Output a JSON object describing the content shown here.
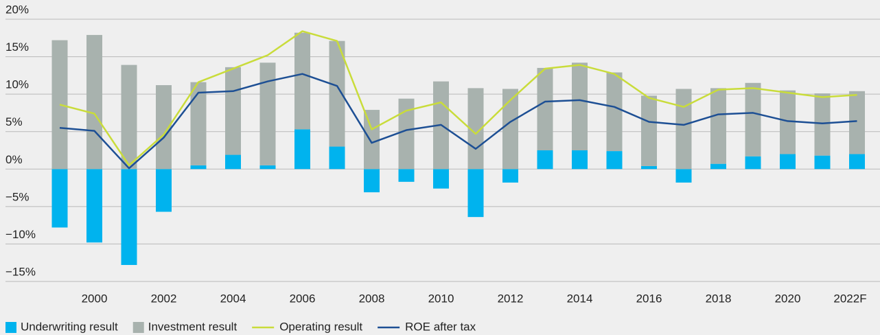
{
  "chart_data": {
    "type": "bar",
    "stacked": true,
    "grid": true,
    "legend": "bottom-left",
    "categories": [
      null,
      "2000",
      null,
      "2002",
      null,
      "2004",
      null,
      "2006",
      null,
      "2008",
      null,
      "2010",
      null,
      "2012",
      null,
      "2014",
      null,
      "2016",
      null,
      "2018",
      null,
      "2020",
      null,
      "2022F"
    ],
    "series": [
      {
        "name": "Underwriting result",
        "type": "bar",
        "color": "#00b3ee",
        "values": [
          -7.8,
          -9.8,
          -12.8,
          -5.7,
          0.5,
          1.9,
          0.5,
          5.3,
          3.0,
          -3.1,
          -1.7,
          -2.6,
          -6.4,
          -1.8,
          2.5,
          2.5,
          2.4,
          0.4,
          -1.8,
          0.7,
          1.7,
          2.0,
          1.8,
          2.0
        ]
      },
      {
        "name": "Investment result",
        "type": "bar",
        "color": "#a8b2ae",
        "values": [
          17.2,
          17.9,
          13.9,
          11.2,
          11.1,
          11.7,
          13.7,
          12.9,
          14.1,
          7.9,
          9.4,
          11.7,
          10.8,
          10.7,
          11.0,
          11.7,
          10.5,
          9.4,
          10.7,
          10.1,
          9.8,
          8.5,
          8.3,
          8.4
        ]
      },
      {
        "name": "Operating result",
        "type": "line",
        "color": "#c9dc3a",
        "values": [
          8.6,
          7.4,
          0.5,
          4.6,
          11.6,
          13.4,
          15.2,
          18.4,
          17.1,
          5.3,
          7.8,
          8.9,
          4.7,
          9.2,
          13.4,
          13.9,
          12.7,
          9.5,
          8.3,
          10.6,
          10.8,
          10.2,
          9.6,
          9.9
        ]
      },
      {
        "name": "ROE after tax",
        "type": "line",
        "color": "#1d4f94",
        "values": [
          5.5,
          5.1,
          0.1,
          4.2,
          10.2,
          10.4,
          11.7,
          12.7,
          11.1,
          3.5,
          5.2,
          5.9,
          2.7,
          6.3,
          9.0,
          9.2,
          8.3,
          6.3,
          5.9,
          7.3,
          7.5,
          6.4,
          6.1,
          6.4
        ]
      }
    ],
    "ylim": [
      -15,
      20
    ],
    "yticks": [
      {
        "value": -15,
        "label": "−15%"
      },
      {
        "value": -10,
        "label": "−10%"
      },
      {
        "value": -5,
        "label": "−5%"
      },
      {
        "value": 0,
        "label": "0%"
      },
      {
        "value": 5,
        "label": "5%"
      },
      {
        "value": 10,
        "label": "10%"
      },
      {
        "value": 15,
        "label": "15%"
      },
      {
        "value": 20,
        "label": "20%"
      }
    ]
  }
}
